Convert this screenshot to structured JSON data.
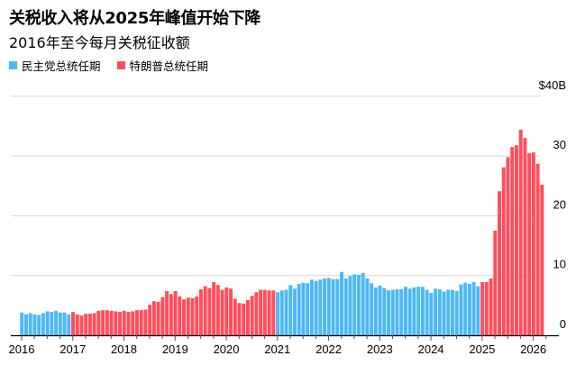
{
  "header": {
    "title": "关税收入将从2025年峰值开始下降",
    "subtitle": "2016年至今每月关税征收额"
  },
  "chart_data": {
    "type": "bar",
    "title": "关税收入将从2025年峰值开始下降",
    "subtitle": "2016年至今每月关税征收额",
    "xlabel": "",
    "ylabel": "",
    "ylim": [
      0,
      40
    ],
    "y_ticks": [
      {
        "value": 40,
        "label": "$40B"
      },
      {
        "value": 30,
        "label": "30"
      },
      {
        "value": 20,
        "label": "20"
      },
      {
        "value": 10,
        "label": "10"
      },
      {
        "value": 0,
        "label": "0"
      }
    ],
    "x_ticks": [
      "2016",
      "2017",
      "2018",
      "2019",
      "2020",
      "2021",
      "2022",
      "2023",
      "2024",
      "2025",
      "2026"
    ],
    "grid": true,
    "legend_position": "top-left",
    "start_month": "2016-01",
    "legend": [
      {
        "name": "民主党总统任期",
        "color": "#4cb8f5"
      },
      {
        "name": "特朗普总统任期",
        "color": "#ff4d5c"
      }
    ],
    "terms": [
      {
        "legend": 0,
        "from": "2016-01",
        "to": "2016-12"
      },
      {
        "legend": 1,
        "from": "2017-01",
        "to": "2020-12"
      },
      {
        "legend": 0,
        "from": "2021-01",
        "to": "2024-12"
      },
      {
        "legend": 1,
        "from": "2025-01",
        "to": "2026-03"
      }
    ],
    "values": [
      3.8,
      3.5,
      3.7,
      3.5,
      3.4,
      3.7,
      4.0,
      3.9,
      4.1,
      3.8,
      3.8,
      3.5,
      3.9,
      3.5,
      3.3,
      3.6,
      3.6,
      3.7,
      4.1,
      4.2,
      4.2,
      4.1,
      4.0,
      3.9,
      4.1,
      3.9,
      4.0,
      4.2,
      4.2,
      4.3,
      5.1,
      5.7,
      5.6,
      6.4,
      7.4,
      6.9,
      7.4,
      6.5,
      6.0,
      6.3,
      6.2,
      6.5,
      7.7,
      8.2,
      7.9,
      8.9,
      8.4,
      7.6,
      8.0,
      7.8,
      6.1,
      5.4,
      5.3,
      5.9,
      6.6,
      7.2,
      7.6,
      7.6,
      7.5,
      7.5,
      7.2,
      7.5,
      7.6,
      8.4,
      7.8,
      8.6,
      8.8,
      8.7,
      9.3,
      9.1,
      9.3,
      9.5,
      9.6,
      9.4,
      9.4,
      10.6,
      9.5,
      9.9,
      10.2,
      10.1,
      10.4,
      9.5,
      8.7,
      8.0,
      8.3,
      7.9,
      7.5,
      7.6,
      7.7,
      7.7,
      8.1,
      7.8,
      8.0,
      8.1,
      8.1,
      7.6,
      7.1,
      7.8,
      7.7,
      7.3,
      7.6,
      7.6,
      7.4,
      8.5,
      8.8,
      8.6,
      8.9,
      8.2,
      8.9,
      8.9,
      9.5,
      17.5,
      24.1,
      28.1,
      29.8,
      31.5,
      31.8,
      34.4,
      33.0,
      30.5,
      30.6,
      28.7,
      25.2
    ]
  }
}
